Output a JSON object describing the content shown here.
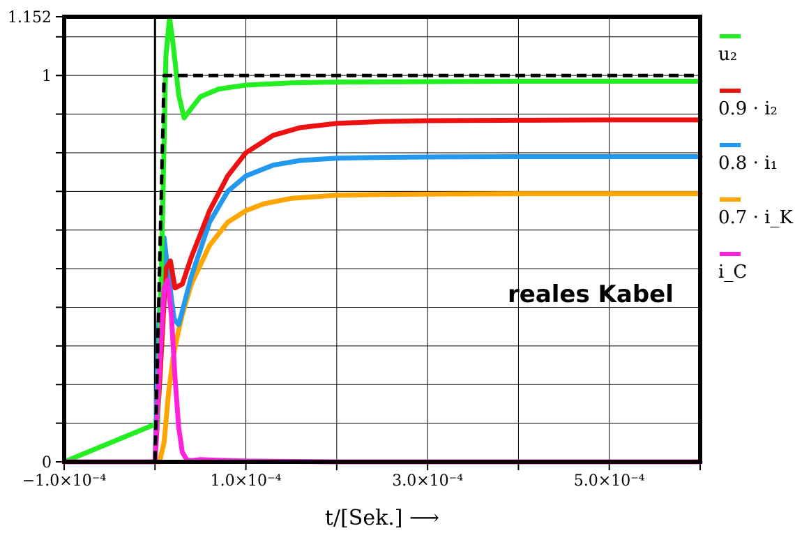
{
  "chart_data": {
    "type": "line",
    "title": "",
    "xlabel": "t/[Sek.] ⟶",
    "ylabel": "",
    "xlim": [
      -0.0001,
      0.0006
    ],
    "ylim": [
      0,
      1.152
    ],
    "x_ticks": [
      -0.0001,
      0.0001,
      0.0003,
      0.0005
    ],
    "x_tick_labels": [
      "−1.0×10⁻⁴",
      "1.0×10⁻⁴",
      "3.0×10⁻⁴",
      "5.0×10⁻⁴"
    ],
    "x_grid": [
      -0.0001,
      0.0,
      0.0001,
      0.0002,
      0.0003,
      0.0004,
      0.0005,
      0.0006
    ],
    "y_ticks": [
      0,
      1,
      1.152
    ],
    "y_tick_labels": [
      "0",
      "1",
      "1.152"
    ],
    "y_grid": [
      0.1,
      0.2,
      0.3,
      0.4,
      0.5,
      0.6,
      0.7,
      0.8,
      0.9,
      1.0,
      1.1
    ],
    "grid": true,
    "legend_position": "right",
    "annotation": "reales Kabel",
    "series": [
      {
        "name": "",
        "color": "#000000",
        "dashed": true,
        "x": [
          -0.0001,
          0.0,
          5e-06,
          1e-05,
          0.0006
        ],
        "y": [
          0,
          0,
          0.5,
          1.0,
          1.0
        ]
      },
      {
        "name": "u₂",
        "color": "#22ee22",
        "x": [
          -0.0001,
          3e-06,
          8e-06,
          1.2e-05,
          1.6e-05,
          2e-05,
          2.6e-05,
          3.2e-05,
          4e-05,
          5e-05,
          7e-05,
          0.0001,
          0.00015,
          0.0002,
          0.0003,
          0.0004,
          0.0005,
          0.0006
        ],
        "y": [
          0,
          0.1,
          0.6,
          1.05,
          1.15,
          1.08,
          0.95,
          0.89,
          0.915,
          0.945,
          0.965,
          0.975,
          0.981,
          0.983,
          0.984,
          0.985,
          0.985,
          0.985
        ]
      },
      {
        "name": "0.9 · i₂",
        "color": "#ee1111",
        "x": [
          -0.0001,
          0.0,
          5e-06,
          1.2e-05,
          1.7e-05,
          2.2e-05,
          3e-05,
          4e-05,
          6e-05,
          8e-05,
          0.0001,
          0.00013,
          0.00016,
          0.0002,
          0.00025,
          0.0003,
          0.0004,
          0.0005,
          0.0006
        ],
        "y": [
          0,
          0,
          0.2,
          0.5,
          0.52,
          0.45,
          0.46,
          0.53,
          0.65,
          0.74,
          0.8,
          0.845,
          0.865,
          0.876,
          0.881,
          0.883,
          0.884,
          0.885,
          0.885
        ]
      },
      {
        "name": "0.8 · i₁",
        "color": "#2299ee",
        "x": [
          -0.0001,
          0.0,
          4e-06,
          1e-05,
          1.5e-05,
          2.1e-05,
          2.6e-05,
          3e-05,
          4e-05,
          6e-05,
          8e-05,
          0.0001,
          0.00013,
          0.00016,
          0.0002,
          0.00025,
          0.0003,
          0.0004,
          0.0005,
          0.0006
        ],
        "y": [
          0,
          0,
          0.35,
          0.58,
          0.48,
          0.37,
          0.355,
          0.39,
          0.48,
          0.62,
          0.7,
          0.74,
          0.768,
          0.78,
          0.786,
          0.788,
          0.789,
          0.79,
          0.79,
          0.79
        ]
      },
      {
        "name": "0.7 · i_K",
        "color": "#ffa500",
        "x": [
          -0.0001,
          5e-06,
          1e-05,
          1.5e-05,
          2e-05,
          2.5e-05,
          3e-05,
          4e-05,
          6e-05,
          8e-05,
          0.0001,
          0.00012,
          0.00015,
          0.0002,
          0.00025,
          0.0003,
          0.0004,
          0.0005,
          0.0006
        ],
        "y": [
          0,
          0,
          0.05,
          0.18,
          0.27,
          0.33,
          0.38,
          0.46,
          0.56,
          0.62,
          0.65,
          0.668,
          0.682,
          0.69,
          0.692,
          0.693,
          0.694,
          0.694,
          0.694
        ]
      },
      {
        "name": "i_C",
        "color": "#ff22dd",
        "x": [
          -0.0001,
          0.0,
          5e-06,
          1e-05,
          1.4e-05,
          1.8e-05,
          2.2e-05,
          2.6e-05,
          3e-05,
          3.5e-05,
          4e-05,
          5e-05,
          7e-05,
          0.0001,
          0.0002,
          0.0006
        ],
        "y": [
          0,
          0,
          0.25,
          0.45,
          0.47,
          0.38,
          0.22,
          0.09,
          0.025,
          0.005,
          0.003,
          0.006,
          0.004,
          0.002,
          0.0,
          0.0
        ]
      }
    ]
  }
}
